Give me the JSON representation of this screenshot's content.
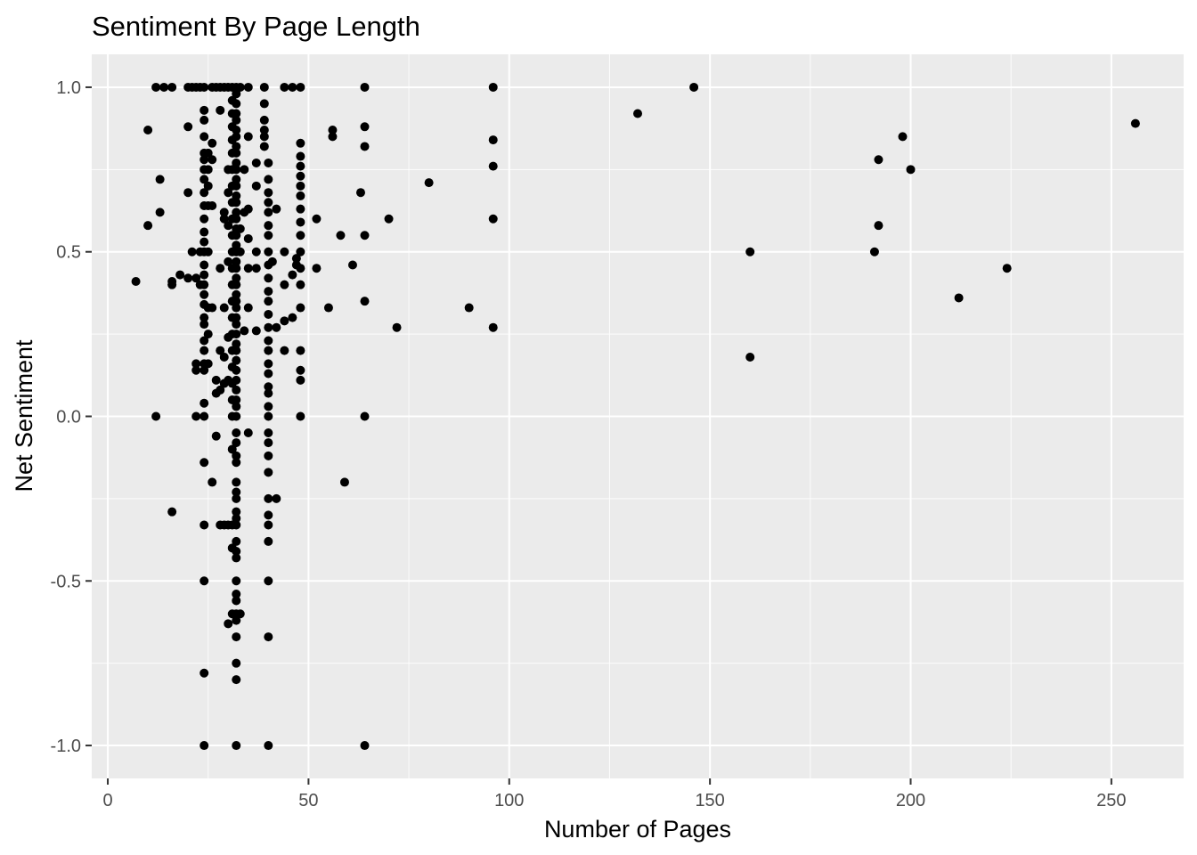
{
  "chart_data": {
    "type": "scatter",
    "title": "Sentiment By Page Length",
    "xlabel": "Number of Pages",
    "ylabel": "Net Sentiment",
    "xlim": [
      -4,
      268
    ],
    "ylim": [
      -1.1,
      1.1
    ],
    "x_ticks": [
      0,
      50,
      100,
      150,
      200,
      250
    ],
    "x_tick_labels": [
      "0",
      "50",
      "100",
      "150",
      "200",
      "250"
    ],
    "y_ticks": [
      -1.0,
      -0.5,
      0.0,
      0.5,
      1.0
    ],
    "y_tick_labels": [
      "-1.0",
      "-0.5",
      "0.0",
      "0.5",
      "1.0"
    ],
    "grid": true,
    "legend": "none",
    "colors": {
      "panel": "#ebebeb",
      "grid": "#ffffff",
      "point": "#000000",
      "tick_text": "#4d4d4d"
    },
    "points": [
      [
        7,
        0.41
      ],
      [
        10,
        0.87
      ],
      [
        10,
        0.58
      ],
      [
        12,
        1.0
      ],
      [
        12,
        0.0
      ],
      [
        13,
        0.72
      ],
      [
        13,
        0.62
      ],
      [
        14,
        1.0
      ],
      [
        16,
        1.0
      ],
      [
        16,
        0.41
      ],
      [
        16,
        0.4
      ],
      [
        16,
        -0.29
      ],
      [
        18,
        0.43
      ],
      [
        20,
        1.0
      ],
      [
        20,
        0.88
      ],
      [
        20,
        0.68
      ],
      [
        20,
        0.42
      ],
      [
        21,
        1.0
      ],
      [
        21,
        0.5
      ],
      [
        22,
        1.0
      ],
      [
        22,
        0.42
      ],
      [
        22,
        0.16
      ],
      [
        22,
        0.14
      ],
      [
        22,
        0.0
      ],
      [
        23,
        1.0
      ],
      [
        23,
        0.5
      ],
      [
        23,
        0.4
      ],
      [
        24,
        1.0
      ],
      [
        24,
        0.93
      ],
      [
        24,
        0.9
      ],
      [
        24,
        0.85
      ],
      [
        24,
        0.8
      ],
      [
        24,
        0.78
      ],
      [
        24,
        0.75
      ],
      [
        24,
        0.72
      ],
      [
        24,
        0.68
      ],
      [
        24,
        0.64
      ],
      [
        24,
        0.6
      ],
      [
        24,
        0.56
      ],
      [
        24,
        0.53
      ],
      [
        24,
        0.5
      ],
      [
        24,
        0.46
      ],
      [
        24,
        0.43
      ],
      [
        24,
        0.4
      ],
      [
        24,
        0.37
      ],
      [
        24,
        0.34
      ],
      [
        24,
        0.3
      ],
      [
        24,
        0.28
      ],
      [
        24,
        0.23
      ],
      [
        24,
        0.2
      ],
      [
        24,
        0.16
      ],
      [
        24,
        0.14
      ],
      [
        24,
        0.04
      ],
      [
        24,
        0.0
      ],
      [
        24,
        -0.14
      ],
      [
        24,
        -0.33
      ],
      [
        24,
        -0.5
      ],
      [
        24,
        -0.78
      ],
      [
        24,
        -1.0
      ],
      [
        25,
        0.8
      ],
      [
        25,
        0.75
      ],
      [
        25,
        0.7
      ],
      [
        25,
        0.64
      ],
      [
        25,
        0.5
      ],
      [
        25,
        0.33
      ],
      [
        25,
        0.25
      ],
      [
        25,
        0.16
      ],
      [
        26,
        1.0
      ],
      [
        26,
        0.83
      ],
      [
        26,
        0.78
      ],
      [
        26,
        0.64
      ],
      [
        26,
        0.33
      ],
      [
        26,
        -0.2
      ],
      [
        27,
        1.0
      ],
      [
        27,
        0.11
      ],
      [
        27,
        0.07
      ],
      [
        27,
        -0.06
      ],
      [
        28,
        1.0
      ],
      [
        28,
        0.93
      ],
      [
        28,
        0.45
      ],
      [
        28,
        0.2
      ],
      [
        28,
        0.08
      ],
      [
        28,
        -0.33
      ],
      [
        29,
        1.0
      ],
      [
        29,
        0.62
      ],
      [
        29,
        0.6
      ],
      [
        29,
        0.33
      ],
      [
        29,
        0.18
      ],
      [
        29,
        0.1
      ],
      [
        29,
        -0.33
      ],
      [
        30,
        1.0
      ],
      [
        30,
        0.75
      ],
      [
        30,
        0.68
      ],
      [
        30,
        0.58
      ],
      [
        30,
        0.47
      ],
      [
        30,
        0.24
      ],
      [
        30,
        0.11
      ],
      [
        30,
        -0.33
      ],
      [
        30,
        -0.63
      ],
      [
        31,
        1.0
      ],
      [
        31,
        0.96
      ],
      [
        31,
        0.92
      ],
      [
        31,
        0.88
      ],
      [
        31,
        0.84
      ],
      [
        31,
        0.8
      ],
      [
        31,
        0.75
      ],
      [
        31,
        0.7
      ],
      [
        31,
        0.65
      ],
      [
        31,
        0.6
      ],
      [
        31,
        0.55
      ],
      [
        31,
        0.5
      ],
      [
        31,
        0.45
      ],
      [
        31,
        0.4
      ],
      [
        31,
        0.35
      ],
      [
        31,
        0.3
      ],
      [
        31,
        0.25
      ],
      [
        31,
        0.2
      ],
      [
        31,
        0.15
      ],
      [
        31,
        0.1
      ],
      [
        31,
        0.05
      ],
      [
        31,
        0.0
      ],
      [
        31,
        -0.1
      ],
      [
        31,
        -0.33
      ],
      [
        31,
        -0.4
      ],
      [
        31,
        -0.6
      ],
      [
        32,
        1.0
      ],
      [
        32,
        0.98
      ],
      [
        32,
        0.95
      ],
      [
        32,
        0.92
      ],
      [
        32,
        0.9
      ],
      [
        32,
        0.87
      ],
      [
        32,
        0.85
      ],
      [
        32,
        0.82
      ],
      [
        32,
        0.8
      ],
      [
        32,
        0.77
      ],
      [
        32,
        0.75
      ],
      [
        32,
        0.72
      ],
      [
        32,
        0.7
      ],
      [
        32,
        0.67
      ],
      [
        32,
        0.65
      ],
      [
        32,
        0.62
      ],
      [
        32,
        0.6
      ],
      [
        32,
        0.57
      ],
      [
        32,
        0.55
      ],
      [
        32,
        0.52
      ],
      [
        32,
        0.5
      ],
      [
        32,
        0.47
      ],
      [
        32,
        0.45
      ],
      [
        32,
        0.42
      ],
      [
        32,
        0.4
      ],
      [
        32,
        0.37
      ],
      [
        32,
        0.35
      ],
      [
        32,
        0.33
      ],
      [
        32,
        0.3
      ],
      [
        32,
        0.28
      ],
      [
        32,
        0.25
      ],
      [
        32,
        0.22
      ],
      [
        32,
        0.2
      ],
      [
        32,
        0.17
      ],
      [
        32,
        0.14
      ],
      [
        32,
        0.11
      ],
      [
        32,
        0.08
      ],
      [
        32,
        0.05
      ],
      [
        32,
        0.03
      ],
      [
        32,
        0.0
      ],
      [
        32,
        -0.05
      ],
      [
        32,
        -0.08
      ],
      [
        32,
        -0.12
      ],
      [
        32,
        -0.14
      ],
      [
        32,
        -0.2
      ],
      [
        32,
        -0.23
      ],
      [
        32,
        -0.25
      ],
      [
        32,
        -0.29
      ],
      [
        32,
        -0.31
      ],
      [
        32,
        -0.33
      ],
      [
        32,
        -0.38
      ],
      [
        32,
        -0.41
      ],
      [
        32,
        -0.43
      ],
      [
        32,
        -0.5
      ],
      [
        32,
        -0.54
      ],
      [
        32,
        -0.56
      ],
      [
        32,
        -0.6
      ],
      [
        32,
        -0.62
      ],
      [
        32,
        -0.67
      ],
      [
        32,
        -0.75
      ],
      [
        32,
        -0.8
      ],
      [
        32,
        -1.0
      ],
      [
        33,
        1.0
      ],
      [
        33,
        0.57
      ],
      [
        33,
        0.5
      ],
      [
        33,
        -0.6
      ],
      [
        34,
        0.75
      ],
      [
        34,
        0.62
      ],
      [
        34,
        0.26
      ],
      [
        35,
        1.0
      ],
      [
        35,
        0.85
      ],
      [
        35,
        0.63
      ],
      [
        35,
        0.54
      ],
      [
        35,
        0.45
      ],
      [
        35,
        0.33
      ],
      [
        35,
        -0.05
      ],
      [
        37,
        0.77
      ],
      [
        37,
        0.7
      ],
      [
        37,
        0.5
      ],
      [
        37,
        0.45
      ],
      [
        37,
        0.26
      ],
      [
        39,
        1.0
      ],
      [
        39,
        0.95
      ],
      [
        39,
        0.9
      ],
      [
        39,
        0.87
      ],
      [
        39,
        0.85
      ],
      [
        39,
        0.82
      ],
      [
        40,
        0.77
      ],
      [
        40,
        0.72
      ],
      [
        40,
        0.68
      ],
      [
        40,
        0.65
      ],
      [
        40,
        0.62
      ],
      [
        40,
        0.58
      ],
      [
        40,
        0.55
      ],
      [
        40,
        0.5
      ],
      [
        40,
        0.46
      ],
      [
        40,
        0.42
      ],
      [
        40,
        0.38
      ],
      [
        40,
        0.35
      ],
      [
        40,
        0.31
      ],
      [
        40,
        0.27
      ],
      [
        40,
        0.23
      ],
      [
        40,
        0.2
      ],
      [
        40,
        0.16
      ],
      [
        40,
        0.13
      ],
      [
        40,
        0.09
      ],
      [
        40,
        0.07
      ],
      [
        40,
        0.03
      ],
      [
        40,
        0.0
      ],
      [
        40,
        -0.05
      ],
      [
        40,
        -0.08
      ],
      [
        40,
        -0.12
      ],
      [
        40,
        -0.17
      ],
      [
        40,
        -0.25
      ],
      [
        40,
        -0.3
      ],
      [
        40,
        -0.33
      ],
      [
        40,
        -0.38
      ],
      [
        40,
        -0.5
      ],
      [
        40,
        -0.67
      ],
      [
        40,
        -1.0
      ],
      [
        41,
        0.47
      ],
      [
        42,
        0.63
      ],
      [
        42,
        0.27
      ],
      [
        42,
        -0.25
      ],
      [
        44,
        1.0
      ],
      [
        44,
        0.5
      ],
      [
        44,
        0.4
      ],
      [
        44,
        0.29
      ],
      [
        44,
        0.2
      ],
      [
        46,
        1.0
      ],
      [
        46,
        0.43
      ],
      [
        46,
        0.3
      ],
      [
        47,
        0.48
      ],
      [
        47,
        0.46
      ],
      [
        48,
        1.0
      ],
      [
        48,
        0.83
      ],
      [
        48,
        0.79
      ],
      [
        48,
        0.76
      ],
      [
        48,
        0.73
      ],
      [
        48,
        0.7
      ],
      [
        48,
        0.67
      ],
      [
        48,
        0.63
      ],
      [
        48,
        0.59
      ],
      [
        48,
        0.55
      ],
      [
        48,
        0.5
      ],
      [
        48,
        0.45
      ],
      [
        48,
        0.4
      ],
      [
        48,
        0.33
      ],
      [
        48,
        0.2
      ],
      [
        48,
        0.14
      ],
      [
        48,
        0.11
      ],
      [
        48,
        0.0
      ],
      [
        52,
        0.6
      ],
      [
        52,
        0.45
      ],
      [
        55,
        0.33
      ],
      [
        56,
        0.87
      ],
      [
        56,
        0.85
      ],
      [
        58,
        0.55
      ],
      [
        59,
        -0.2
      ],
      [
        61,
        0.46
      ],
      [
        63,
        0.68
      ],
      [
        64,
        1.0
      ],
      [
        64,
        0.88
      ],
      [
        64,
        0.82
      ],
      [
        64,
        0.55
      ],
      [
        64,
        0.35
      ],
      [
        64,
        0.0
      ],
      [
        64,
        -1.0
      ],
      [
        70,
        0.6
      ],
      [
        72,
        0.27
      ],
      [
        80,
        0.71
      ],
      [
        90,
        0.33
      ],
      [
        96,
        1.0
      ],
      [
        96,
        0.84
      ],
      [
        96,
        0.76
      ],
      [
        96,
        0.6
      ],
      [
        96,
        0.27
      ],
      [
        132,
        0.92
      ],
      [
        146,
        1.0
      ],
      [
        160,
        0.5
      ],
      [
        160,
        0.18
      ],
      [
        191,
        0.5
      ],
      [
        192,
        0.78
      ],
      [
        192,
        0.58
      ],
      [
        198,
        0.85
      ],
      [
        200,
        0.75
      ],
      [
        212,
        0.36
      ],
      [
        224,
        0.45
      ],
      [
        256,
        0.89
      ]
    ]
  }
}
